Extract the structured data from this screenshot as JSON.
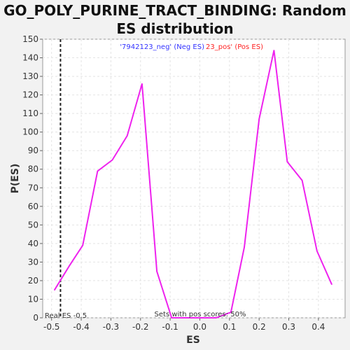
{
  "chart_data": {
    "type": "line",
    "title_line1": "GO_POLY_PURINE_TRACT_BINDING: Random",
    "title_line2": "ES distribution",
    "xlabel": "ES",
    "ylabel": "P(ES)",
    "xlim": [
      -0.53,
      0.49
    ],
    "ylim": [
      0,
      150
    ],
    "xticks": [
      -0.5,
      -0.4,
      -0.3,
      -0.2,
      -0.1,
      0.0,
      0.1,
      0.2,
      0.3,
      0.4
    ],
    "xtick_labels": [
      "-0.5",
      "-0.4",
      "-0.3",
      "-0.2",
      "-0.1",
      "0.0",
      "0.1",
      "0.2",
      "0.3",
      "0.4"
    ],
    "yticks": [
      0,
      10,
      20,
      30,
      40,
      50,
      60,
      70,
      80,
      90,
      100,
      110,
      120,
      130,
      140,
      150
    ],
    "grid": true,
    "series": [
      {
        "color": "#ee22ee",
        "x": [
          -0.49,
          -0.44,
          -0.395,
          -0.345,
          -0.295,
          -0.245,
          -0.195,
          -0.145,
          -0.095,
          -0.045,
          0.005,
          0.055,
          0.105,
          0.15,
          0.2,
          0.25,
          0.295,
          0.345,
          0.395,
          0.445
        ],
        "y": [
          15,
          28,
          39,
          79,
          85,
          98,
          126,
          25,
          0,
          0,
          0,
          0,
          3,
          38,
          107,
          144,
          84,
          74,
          36,
          18
        ]
      }
    ],
    "real_es": -0.47,
    "legend": {
      "neg_label": "'7942123_neg' (Neg ES)",
      "pos_label": "23_pos' (Pos ES)",
      "neg_color": "#3333ff",
      "pos_color": "#ff2222"
    },
    "annotations": {
      "real_es": "Real ES -0.5",
      "pos_scores": "Sets with pos scores: 50%"
    }
  }
}
